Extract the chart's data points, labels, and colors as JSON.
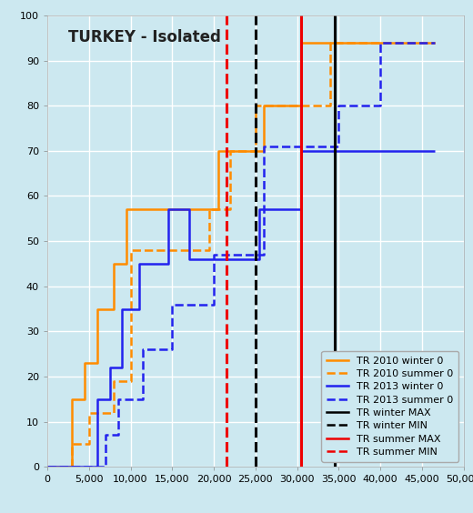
{
  "title": "TURKEY - Isolated",
  "background_color": "#cce8f0",
  "xlim": [
    0,
    50000
  ],
  "ylim": [
    0,
    100
  ],
  "xticks": [
    0,
    5000,
    10000,
    15000,
    20000,
    25000,
    30000,
    35000,
    40000,
    45000,
    50000
  ],
  "yticks": [
    0,
    10,
    20,
    30,
    40,
    50,
    60,
    70,
    80,
    90,
    100
  ],
  "tr2010_winter": {
    "x": [
      0,
      3000,
      3000,
      4500,
      4500,
      6000,
      6000,
      8000,
      8000,
      9500,
      9500,
      20500,
      20500,
      26000,
      26000,
      30500,
      30500,
      34000,
      34000,
      46500
    ],
    "y": [
      0,
      0,
      15,
      15,
      23,
      23,
      35,
      35,
      45,
      45,
      57,
      57,
      70,
      70,
      80,
      80,
      94,
      94,
      94,
      94
    ],
    "color": "#FF8C00",
    "linestyle": "solid",
    "linewidth": 1.8,
    "label": "TR 2010 winter 0"
  },
  "tr2010_summer": {
    "x": [
      0,
      3000,
      3000,
      5000,
      5000,
      8000,
      8000,
      10000,
      10000,
      19500,
      19500,
      22000,
      22000,
      25000,
      25000,
      34000,
      34000,
      46500
    ],
    "y": [
      0,
      0,
      5,
      5,
      12,
      12,
      19,
      19,
      48,
      48,
      57,
      57,
      70,
      70,
      80,
      80,
      94,
      94
    ],
    "color": "#FF8C00",
    "linestyle": "dashed",
    "linewidth": 1.8,
    "label": "TR 2010 summer 0"
  },
  "tr2013_winter": {
    "x": [
      0,
      6000,
      6000,
      7500,
      7500,
      9000,
      9000,
      11000,
      11000,
      14500,
      14500,
      17000,
      17000,
      25500,
      25500,
      30500,
      30500,
      34000,
      34000,
      46500
    ],
    "y": [
      0,
      0,
      15,
      15,
      22,
      22,
      35,
      35,
      45,
      45,
      57,
      57,
      46,
      46,
      57,
      57,
      70,
      70,
      70,
      70
    ],
    "color": "#2222EE",
    "linestyle": "solid",
    "linewidth": 1.8,
    "label": "TR 2013 winter 0"
  },
  "tr2013_summer": {
    "x": [
      0,
      7000,
      7000,
      8500,
      8500,
      11500,
      11500,
      15000,
      15000,
      20000,
      20000,
      26000,
      26000,
      35000,
      35000,
      40000,
      40000,
      46500
    ],
    "y": [
      0,
      0,
      7,
      7,
      15,
      15,
      26,
      26,
      36,
      36,
      47,
      47,
      71,
      71,
      80,
      80,
      94,
      94
    ],
    "color": "#2222EE",
    "linestyle": "dashed",
    "linewidth": 1.8,
    "label": "TR 2013 summer 0"
  },
  "tr_winter_max": {
    "x": 34500,
    "color": "#000000",
    "linestyle": "solid",
    "linewidth": 2.2,
    "label": "TR winter MAX"
  },
  "tr_winter_min": {
    "x": 25000,
    "color": "#000000",
    "linestyle": "dashed",
    "linewidth": 2.2,
    "label": "TR winter MIN"
  },
  "tr_summer_max": {
    "x": 30500,
    "color": "#EE0000",
    "linestyle": "solid",
    "linewidth": 2.2,
    "label": "TR summer MAX"
  },
  "tr_summer_min": {
    "x": 21500,
    "color": "#EE0000",
    "linestyle": "dashed",
    "linewidth": 2.2,
    "label": "TR summer MIN"
  },
  "legend_fontsize": 8.0,
  "title_fontsize": 12,
  "figwidth": 5.2,
  "figheight": 5.64,
  "dpi": 100
}
